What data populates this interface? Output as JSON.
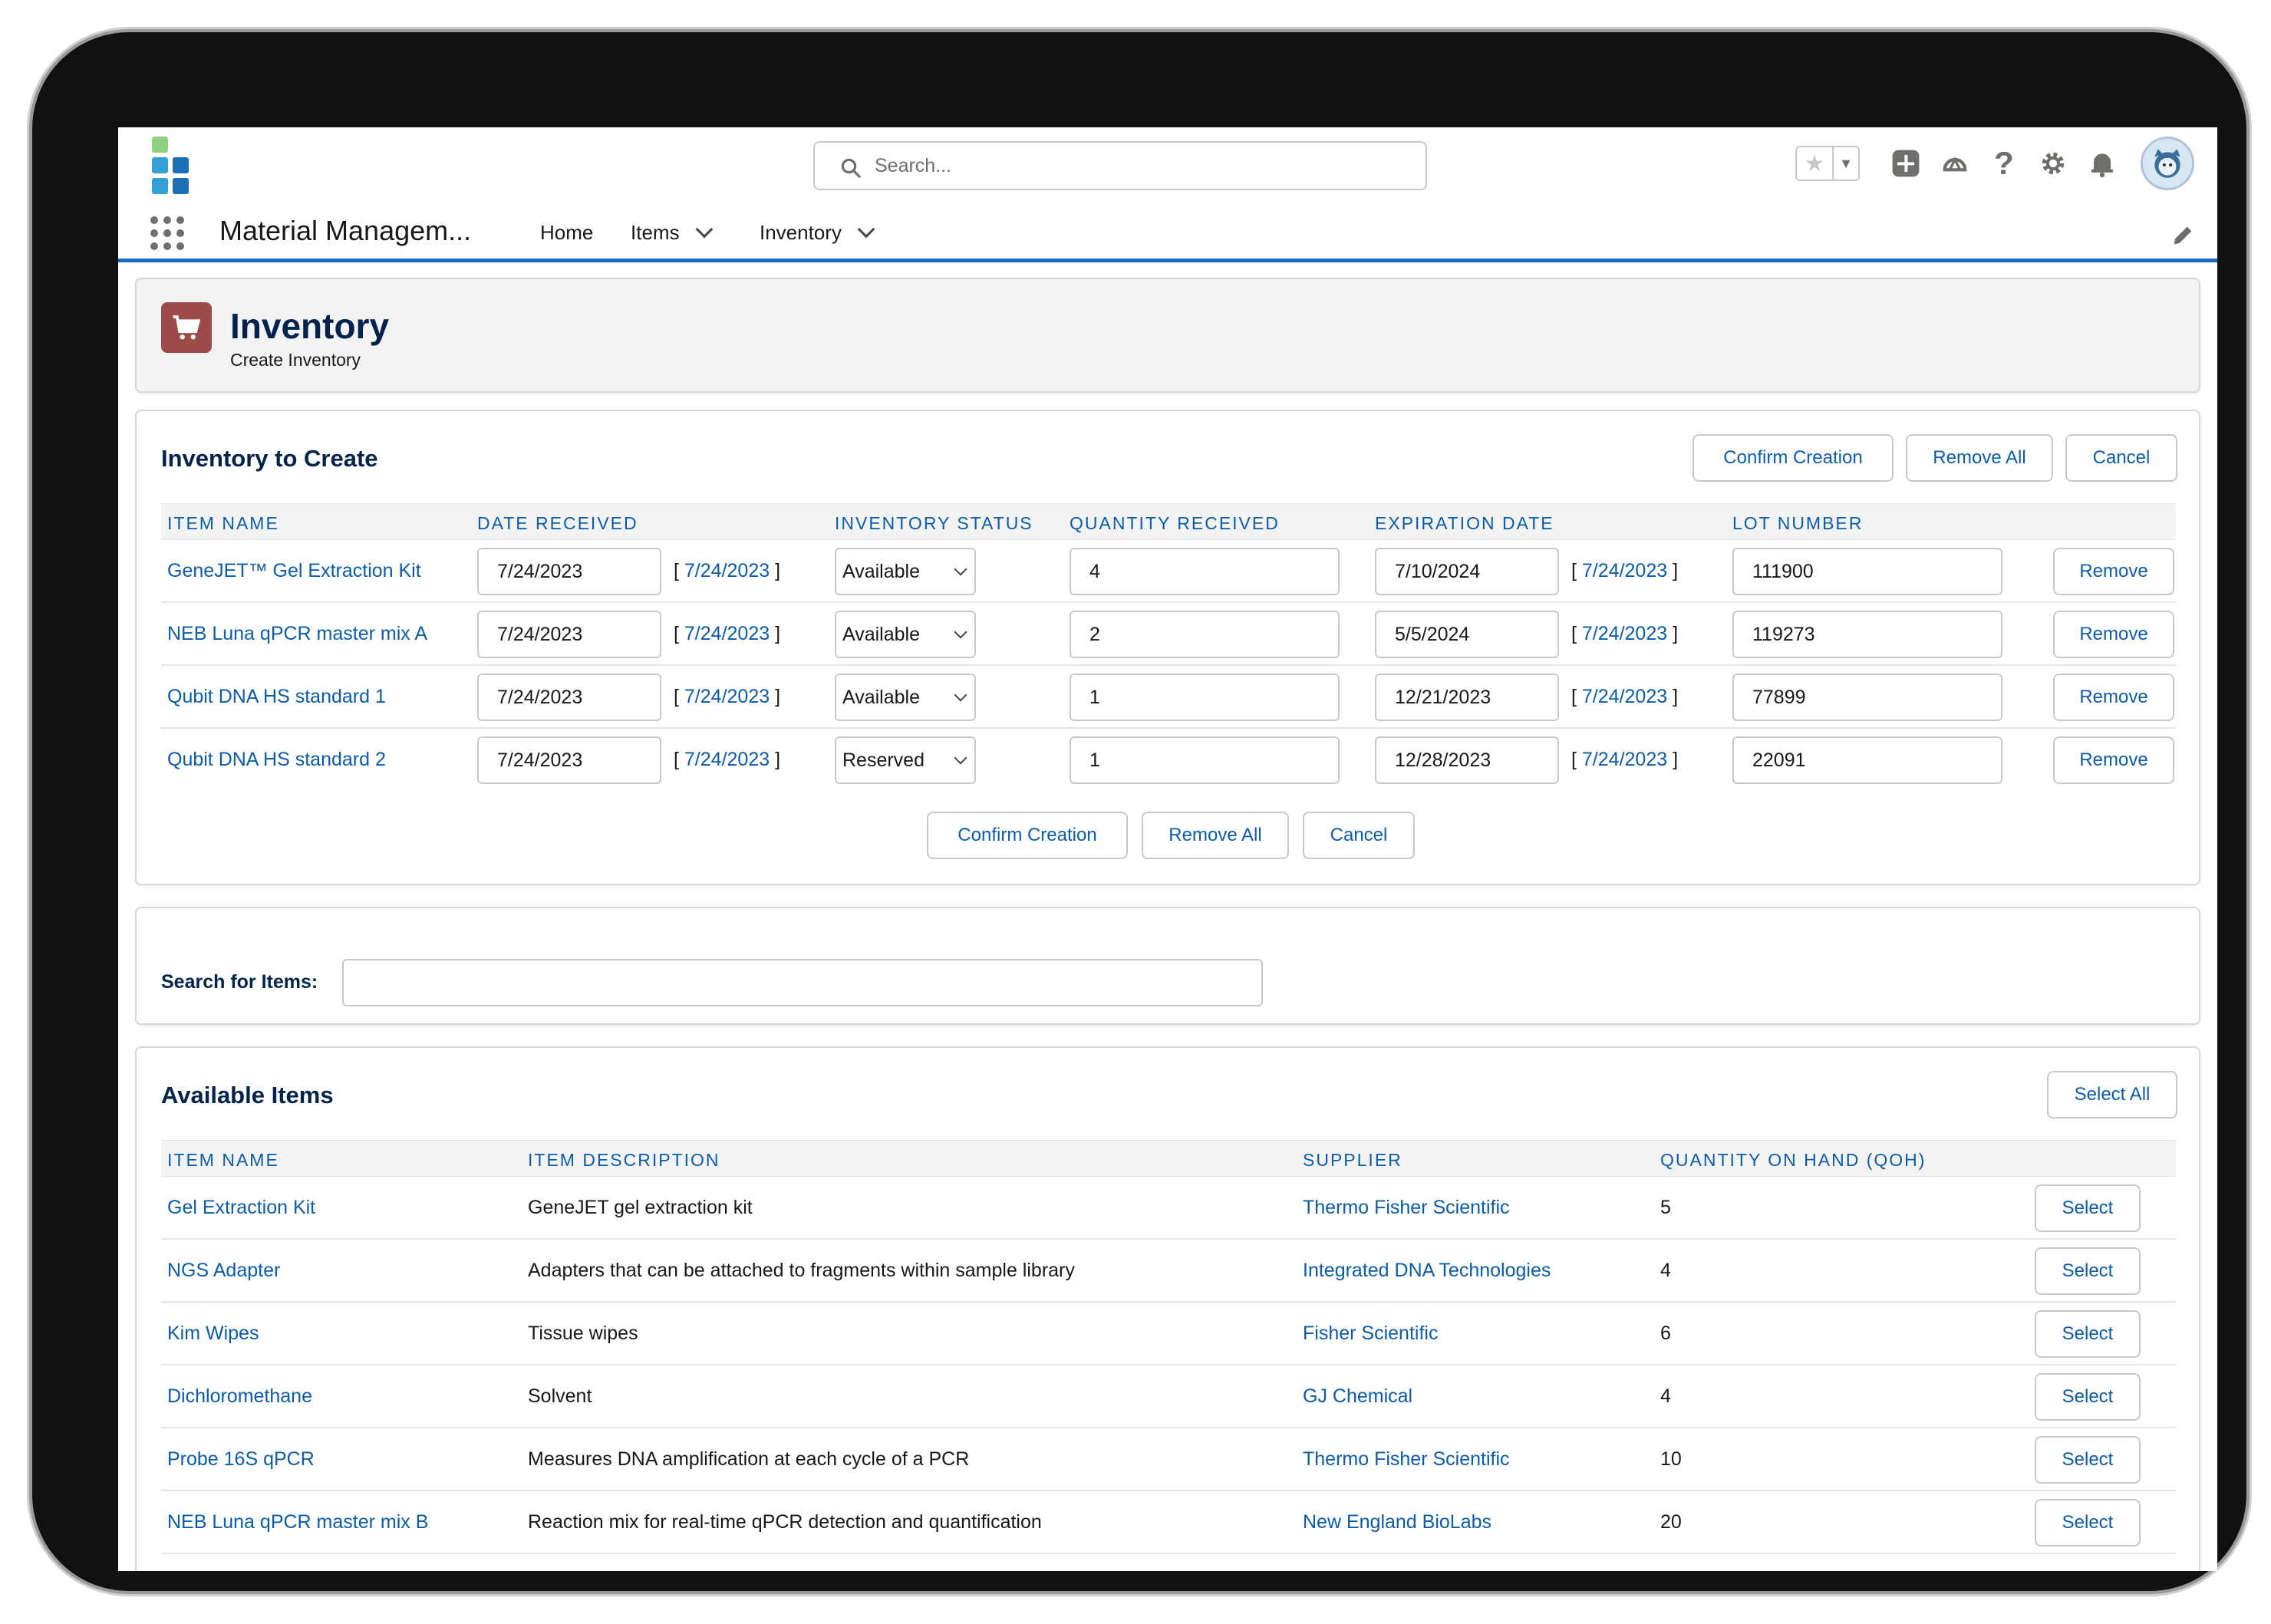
{
  "header": {
    "search_placeholder": "Search...",
    "icons": [
      "favorites-star-icon",
      "add-icon",
      "trailhead-icon",
      "help-icon",
      "setup-gear-icon",
      "notifications-bell-icon",
      "user-avatar"
    ]
  },
  "nav": {
    "app_name": "Material Managem...",
    "items": [
      {
        "label": "Home"
      },
      {
        "label": "Items"
      },
      {
        "label": "Inventory"
      }
    ]
  },
  "page_header": {
    "title": "Inventory",
    "subtitle": "Create Inventory"
  },
  "to_create": {
    "title": "Inventory to Create",
    "buttons": {
      "confirm": "Confirm Creation",
      "remove_all": "Remove All",
      "cancel": "Cancel"
    },
    "columns": [
      "Item Name",
      "Date Received",
      "Inventory Status",
      "Quantity Received",
      "Expiration Date",
      "Lot Number"
    ],
    "rows": [
      {
        "item": "GeneJET™ Gel Extraction Kit",
        "date_received": "7/24/2023",
        "date_link": "7/24/2023",
        "status": "Available",
        "quantity": "4",
        "expiration": "7/10/2024",
        "exp_link": "7/24/2023",
        "lot": "111900",
        "remove": "Remove"
      },
      {
        "item": "NEB Luna qPCR master mix A",
        "date_received": "7/24/2023",
        "date_link": "7/24/2023",
        "status": "Available",
        "quantity": "2",
        "expiration": "5/5/2024",
        "exp_link": "7/24/2023",
        "lot": "119273",
        "remove": "Remove"
      },
      {
        "item": "Qubit DNA HS standard 1",
        "date_received": "7/24/2023",
        "date_link": "7/24/2023",
        "status": "Available",
        "quantity": "1",
        "expiration": "12/21/2023",
        "exp_link": "7/24/2023",
        "lot": "77899",
        "remove": "Remove"
      },
      {
        "item": "Qubit DNA HS standard 2",
        "date_received": "7/24/2023",
        "date_link": "7/24/2023",
        "status": "Reserved",
        "quantity": "1",
        "expiration": "12/28/2023",
        "exp_link": "7/24/2023",
        "lot": "22091",
        "remove": "Remove"
      }
    ]
  },
  "search_items": {
    "label": "Search for Items:",
    "value": ""
  },
  "available": {
    "title": "Available Items",
    "select_all": "Select All",
    "columns": [
      "Item Name",
      "Item Description",
      "Supplier",
      "Quantity On Hand (QOH)"
    ],
    "rows": [
      {
        "item": "Gel Extraction Kit",
        "description": "GeneJET gel extraction kit",
        "supplier": "Thermo Fisher Scientific",
        "qoh": "5",
        "select": "Select"
      },
      {
        "item": "NGS Adapter",
        "description": "Adapters that can be attached to fragments within sample library",
        "supplier": "Integrated DNA Technologies",
        "qoh": "4",
        "select": "Select"
      },
      {
        "item": "Kim Wipes",
        "description": "Tissue wipes",
        "supplier": "Fisher Scientific",
        "qoh": "6",
        "select": "Select"
      },
      {
        "item": "Dichloromethane",
        "description": "Solvent",
        "supplier": "GJ Chemical",
        "qoh": "4",
        "select": "Select"
      },
      {
        "item": "Probe 16S qPCR",
        "description": "Measures DNA amplification at each cycle of a PCR",
        "supplier": "Thermo Fisher Scientific",
        "qoh": "10",
        "select": "Select"
      },
      {
        "item": "NEB Luna qPCR master mix B",
        "description": "Reaction mix for real-time qPCR detection and quantification",
        "supplier": "New England BioLabs",
        "qoh": "20",
        "select": "Select"
      }
    ]
  },
  "colors": {
    "brand_blue": "#0b5cab",
    "title_navy": "#03234d",
    "nav_underline": "#1b6ec2",
    "page_icon": "#9c4a4a"
  }
}
